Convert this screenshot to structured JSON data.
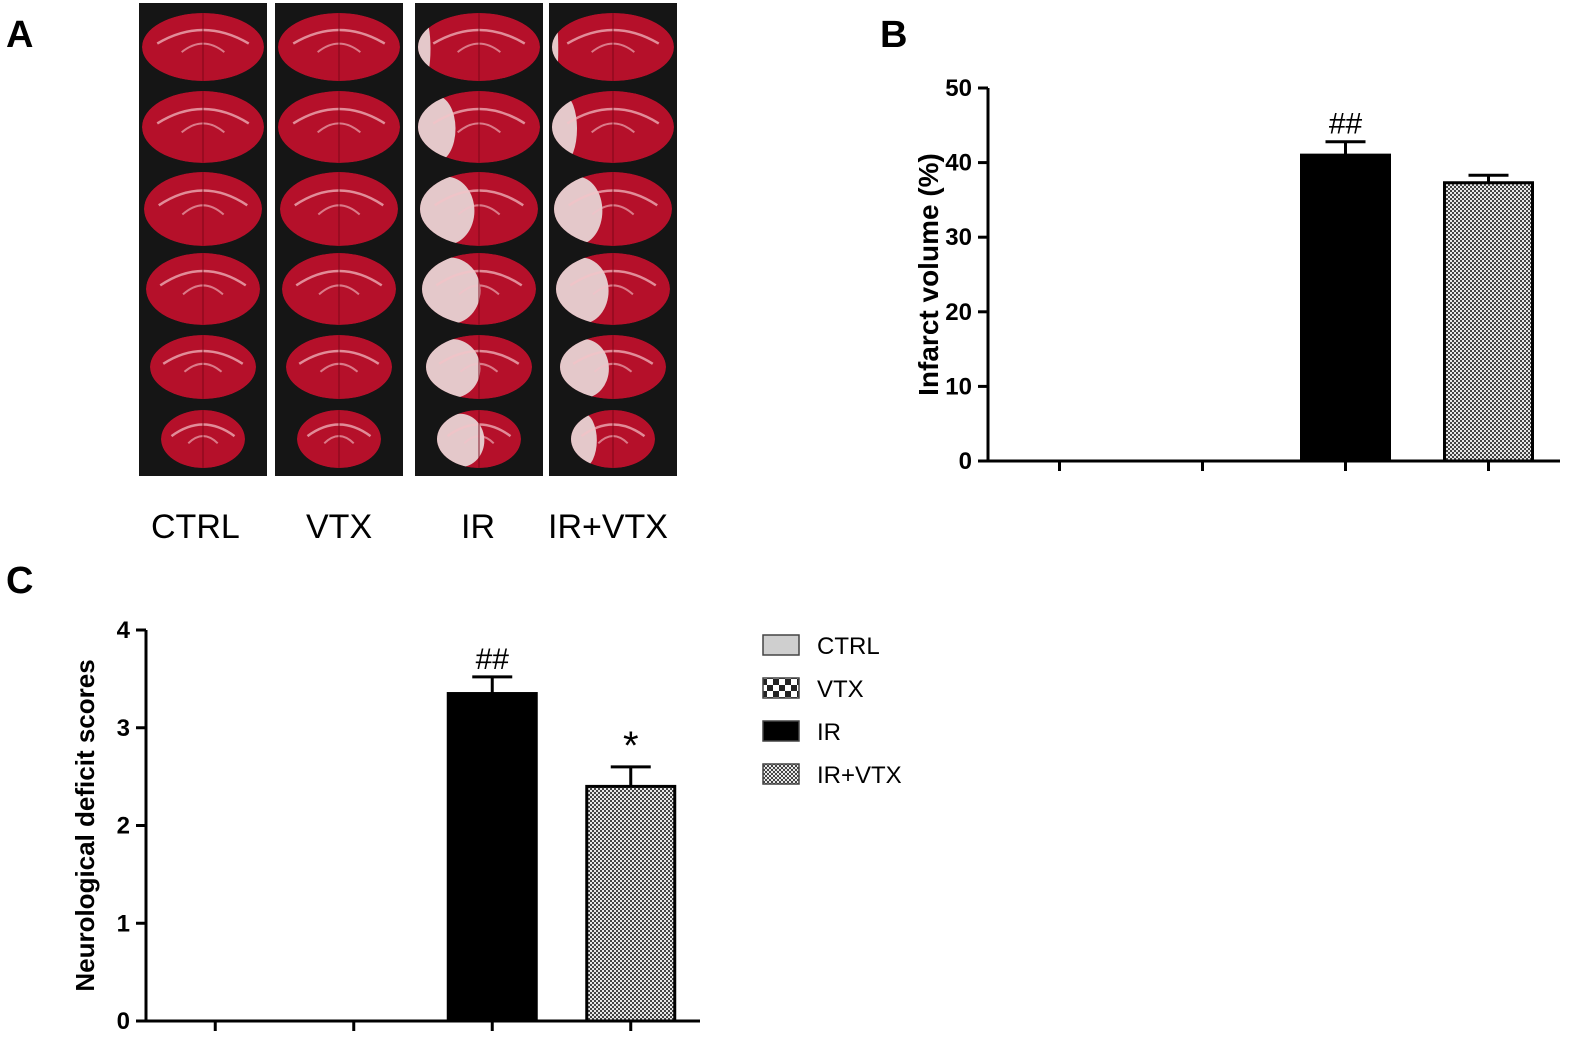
{
  "panels": {
    "a": {
      "letter": "A",
      "groups": [
        "CTRL",
        "VTX",
        "IR",
        "IR+VTX"
      ],
      "slice_count": 6,
      "infarct_fraction": [
        [
          0,
          0,
          0,
          0,
          0,
          0
        ],
        [
          0,
          0,
          0,
          0,
          0,
          0
        ],
        [
          0.1,
          0.3,
          0.45,
          0.5,
          0.5,
          0.55
        ],
        [
          0.05,
          0.2,
          0.4,
          0.45,
          0.45,
          0.3
        ]
      ]
    },
    "b": {
      "letter": "B"
    },
    "c": {
      "letter": "C"
    }
  },
  "colors": {
    "tissue": "#b5102a",
    "background": "#151515",
    "infarct": "#e8d8d8",
    "bar_ir": "#000000",
    "bar_ctrl": "#cfcfcf"
  },
  "chart_data": [
    {
      "type": "bar",
      "panel": "B",
      "categories": [
        "CTRL",
        "VTX",
        "IR",
        "IR+VTX"
      ],
      "values": [
        0,
        0,
        41,
        37.3
      ],
      "errors": [
        0,
        0,
        1.8,
        1.0
      ],
      "annotations": [
        "",
        "",
        "##",
        ""
      ],
      "title": "",
      "xlabel": "",
      "ylabel": "Infarct volume (%)",
      "ylim": [
        0,
        50
      ],
      "yticks": [
        "0",
        "10",
        "20",
        "30",
        "40",
        "50"
      ],
      "grid": false
    },
    {
      "type": "bar",
      "panel": "C",
      "categories": [
        "CTRL",
        "VTX",
        "IR",
        "IR+VTX"
      ],
      "values": [
        0,
        0,
        3.35,
        2.4
      ],
      "errors": [
        0,
        0,
        0.17,
        0.2
      ],
      "annotations": [
        "",
        "",
        "##",
        "*"
      ],
      "title": "",
      "xlabel": "",
      "ylabel": "Neurological deficit scores",
      "ylim": [
        0,
        4
      ],
      "yticks": [
        "0",
        "1",
        "2",
        "3",
        "4"
      ],
      "grid": false
    }
  ],
  "legend": {
    "placement": "right",
    "items": [
      {
        "label": "CTRL",
        "fill": "solid-lightgray"
      },
      {
        "label": "VTX",
        "fill": "checker-large"
      },
      {
        "label": "IR",
        "fill": "solid-black"
      },
      {
        "label": "IR+VTX",
        "fill": "checker-fine"
      }
    ]
  }
}
